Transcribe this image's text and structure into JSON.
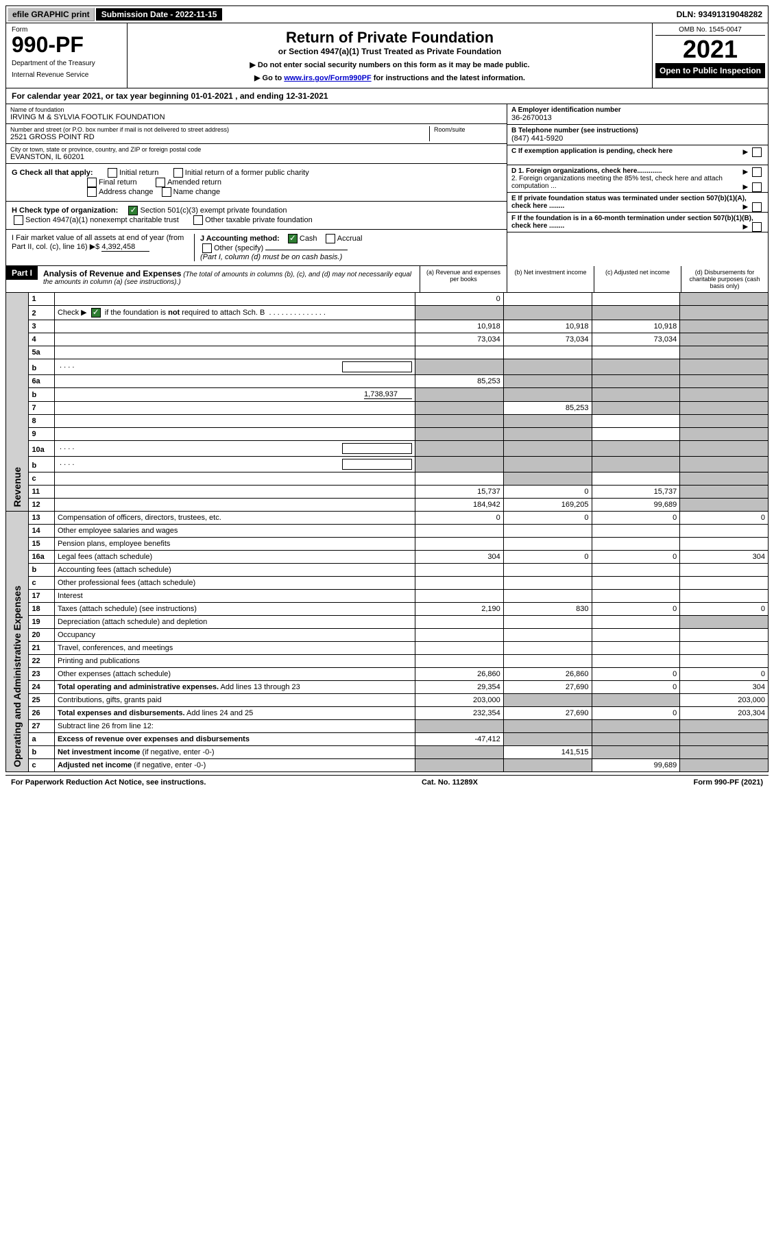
{
  "topbar": {
    "efile_btn": "efile GRAPHIC print",
    "submission": "Submission Date - 2022-11-15",
    "dln": "DLN: 93491319048282"
  },
  "header": {
    "form_label": "Form",
    "form_number": "990-PF",
    "dept": "Department of the Treasury",
    "irs": "Internal Revenue Service",
    "title": "Return of Private Foundation",
    "subtitle": "or Section 4947(a)(1) Trust Treated as Private Foundation",
    "instr1": "▶ Do not enter social security numbers on this form as it may be made public.",
    "instr2_prefix": "▶ Go to ",
    "instr2_link": "www.irs.gov/Form990PF",
    "instr2_suffix": " for instructions and the latest information.",
    "omb": "OMB No. 1545-0047",
    "year": "2021",
    "open": "Open to Public Inspection"
  },
  "calendar": {
    "text_prefix": "For calendar year 2021, or tax year beginning ",
    "begin": "01-01-2021",
    "text_mid": " , and ending ",
    "end": "12-31-2021"
  },
  "entity": {
    "name_lbl": "Name of foundation",
    "name": "IRVING M & SYLVIA FOOTLIK FOUNDATION",
    "addr_lbl": "Number and street (or P.O. box number if mail is not delivered to street address)",
    "addr": "2521 GROSS POINT RD",
    "room_lbl": "Room/suite",
    "city_lbl": "City or town, state or province, country, and ZIP or foreign postal code",
    "city": "EVANSTON, IL  60201",
    "ein_lbl": "A Employer identification number",
    "ein": "36-2670013",
    "phone_lbl": "B Telephone number (see instructions)",
    "phone": "(847) 441-5920",
    "c_lbl": "C If exemption application is pending, check here",
    "d1_lbl": "D 1. Foreign organizations, check here.............",
    "d2_lbl": "2. Foreign organizations meeting the 85% test, check here and attach computation ...",
    "e_lbl": "E  If private foundation status was terminated under section 507(b)(1)(A), check here ........",
    "f_lbl": "F  If the foundation is in a 60-month termination under section 507(b)(1)(B), check here ........"
  },
  "checks": {
    "g_lbl": "G Check all that apply:",
    "initial": "Initial return",
    "final": "Final return",
    "address": "Address change",
    "initial_former": "Initial return of a former public charity",
    "amended": "Amended return",
    "name": "Name change",
    "h_lbl": "H Check type of organization:",
    "h_501c3": "Section 501(c)(3) exempt private foundation",
    "h_4947": "Section 4947(a)(1) nonexempt charitable trust",
    "h_other": "Other taxable private foundation",
    "i_lbl": "I Fair market value of all assets at end of year (from Part II, col. (c), line 16) ▶$ ",
    "i_val": "4,392,458",
    "j_lbl": "J Accounting method:",
    "j_cash": "Cash",
    "j_accrual": "Accrual",
    "j_other": "Other (specify)",
    "j_note": "(Part I, column (d) must be on cash basis.)"
  },
  "part1": {
    "label": "Part I",
    "title": "Analysis of Revenue and Expenses",
    "note": "(The total of amounts in columns (b), (c), and (d) may not necessarily equal the amounts in column (a) (see instructions).)",
    "col_a": "(a) Revenue and expenses per books",
    "col_b": "(b) Net investment income",
    "col_c": "(c) Adjusted net income",
    "col_d": "(d) Disbursements for charitable purposes (cash basis only)"
  },
  "sections": {
    "revenue": "Revenue",
    "expenses": "Operating and Administrative Expenses"
  },
  "rows": [
    {
      "n": "1",
      "d": "",
      "a": "0",
      "b": "",
      "c": "",
      "grey": [
        "d"
      ]
    },
    {
      "n": "2",
      "d": "",
      "a": "",
      "b": "",
      "c": "",
      "grey": [
        "a",
        "b",
        "c",
        "d"
      ],
      "check": true
    },
    {
      "n": "3",
      "d": "",
      "a": "10,918",
      "b": "10,918",
      "c": "10,918",
      "grey": [
        "d"
      ]
    },
    {
      "n": "4",
      "d": "",
      "a": "73,034",
      "b": "73,034",
      "c": "73,034",
      "grey": [
        "d"
      ]
    },
    {
      "n": "5a",
      "d": "",
      "a": "",
      "b": "",
      "c": "",
      "grey": [
        "d"
      ]
    },
    {
      "n": "b",
      "d": "",
      "a": "",
      "b": "",
      "c": "",
      "grey": [
        "a",
        "b",
        "c",
        "d"
      ],
      "inline_box": true
    },
    {
      "n": "6a",
      "d": "",
      "a": "85,253",
      "b": "",
      "c": "",
      "grey": [
        "b",
        "c",
        "d"
      ]
    },
    {
      "n": "b",
      "d": "",
      "a": "",
      "b": "",
      "c": "",
      "grey": [
        "a",
        "b",
        "c",
        "d"
      ],
      "inline_val": "1,738,937"
    },
    {
      "n": "7",
      "d": "",
      "a": "",
      "b": "85,253",
      "c": "",
      "grey": [
        "a",
        "c",
        "d"
      ]
    },
    {
      "n": "8",
      "d": "",
      "a": "",
      "b": "",
      "c": "",
      "grey": [
        "a",
        "b",
        "d"
      ]
    },
    {
      "n": "9",
      "d": "",
      "a": "",
      "b": "",
      "c": "",
      "grey": [
        "a",
        "b",
        "d"
      ]
    },
    {
      "n": "10a",
      "d": "",
      "a": "",
      "b": "",
      "c": "",
      "grey": [
        "a",
        "b",
        "c",
        "d"
      ],
      "inline_box": true
    },
    {
      "n": "b",
      "d": "",
      "a": "",
      "b": "",
      "c": "",
      "grey": [
        "a",
        "b",
        "c",
        "d"
      ],
      "inline_box": true
    },
    {
      "n": "c",
      "d": "",
      "a": "",
      "b": "",
      "c": "",
      "grey": [
        "b",
        "d"
      ]
    },
    {
      "n": "11",
      "d": "",
      "a": "15,737",
      "b": "0",
      "c": "15,737",
      "grey": [
        "d"
      ]
    },
    {
      "n": "12",
      "d": "",
      "a": "184,942",
      "b": "169,205",
      "c": "99,689",
      "grey": [
        "d"
      ],
      "bold": true
    }
  ],
  "exp_rows": [
    {
      "n": "13",
      "d": "Compensation of officers, directors, trustees, etc.",
      "a": "0",
      "b": "0",
      "c": "0",
      "dd": "0"
    },
    {
      "n": "14",
      "d": "Other employee salaries and wages",
      "a": "",
      "b": "",
      "c": "",
      "dd": ""
    },
    {
      "n": "15",
      "d": "Pension plans, employee benefits",
      "a": "",
      "b": "",
      "c": "",
      "dd": ""
    },
    {
      "n": "16a",
      "d": "Legal fees (attach schedule)",
      "a": "304",
      "b": "0",
      "c": "0",
      "dd": "304"
    },
    {
      "n": "b",
      "d": "Accounting fees (attach schedule)",
      "a": "",
      "b": "",
      "c": "",
      "dd": ""
    },
    {
      "n": "c",
      "d": "Other professional fees (attach schedule)",
      "a": "",
      "b": "",
      "c": "",
      "dd": ""
    },
    {
      "n": "17",
      "d": "Interest",
      "a": "",
      "b": "",
      "c": "",
      "dd": ""
    },
    {
      "n": "18",
      "d": "Taxes (attach schedule) (see instructions)",
      "a": "2,190",
      "b": "830",
      "c": "0",
      "dd": "0"
    },
    {
      "n": "19",
      "d": "Depreciation (attach schedule) and depletion",
      "a": "",
      "b": "",
      "c": "",
      "dd": "",
      "grey": [
        "d"
      ]
    },
    {
      "n": "20",
      "d": "Occupancy",
      "a": "",
      "b": "",
      "c": "",
      "dd": ""
    },
    {
      "n": "21",
      "d": "Travel, conferences, and meetings",
      "a": "",
      "b": "",
      "c": "",
      "dd": ""
    },
    {
      "n": "22",
      "d": "Printing and publications",
      "a": "",
      "b": "",
      "c": "",
      "dd": ""
    },
    {
      "n": "23",
      "d": "Other expenses (attach schedule)",
      "a": "26,860",
      "b": "26,860",
      "c": "0",
      "dd": "0"
    },
    {
      "n": "24",
      "d": "<b>Total operating and administrative expenses.</b> Add lines 13 through 23",
      "a": "29,354",
      "b": "27,690",
      "c": "0",
      "dd": "304"
    },
    {
      "n": "25",
      "d": "Contributions, gifts, grants paid",
      "a": "203,000",
      "b": "",
      "c": "",
      "dd": "203,000",
      "grey": [
        "b",
        "c"
      ]
    },
    {
      "n": "26",
      "d": "<b>Total expenses and disbursements.</b> Add lines 24 and 25",
      "a": "232,354",
      "b": "27,690",
      "c": "0",
      "dd": "203,304"
    },
    {
      "n": "27",
      "d": "Subtract line 26 from line 12:",
      "a": "",
      "b": "",
      "c": "",
      "dd": "",
      "grey": [
        "a",
        "b",
        "c",
        "d"
      ]
    },
    {
      "n": "a",
      "d": "<b>Excess of revenue over expenses and disbursements</b>",
      "a": "-47,412",
      "b": "",
      "c": "",
      "dd": "",
      "grey": [
        "b",
        "c",
        "d"
      ]
    },
    {
      "n": "b",
      "d": "<b>Net investment income</b> (if negative, enter -0-)",
      "a": "",
      "b": "141,515",
      "c": "",
      "dd": "",
      "grey": [
        "a",
        "c",
        "d"
      ]
    },
    {
      "n": "c",
      "d": "<b>Adjusted net income</b> (if negative, enter -0-)",
      "a": "",
      "b": "",
      "c": "99,689",
      "dd": "",
      "grey": [
        "a",
        "b",
        "d"
      ]
    }
  ],
  "footer": {
    "paperwork": "For Paperwork Reduction Act Notice, see instructions.",
    "cat": "Cat. No. 11289X",
    "form": "Form 990-PF (2021)"
  }
}
